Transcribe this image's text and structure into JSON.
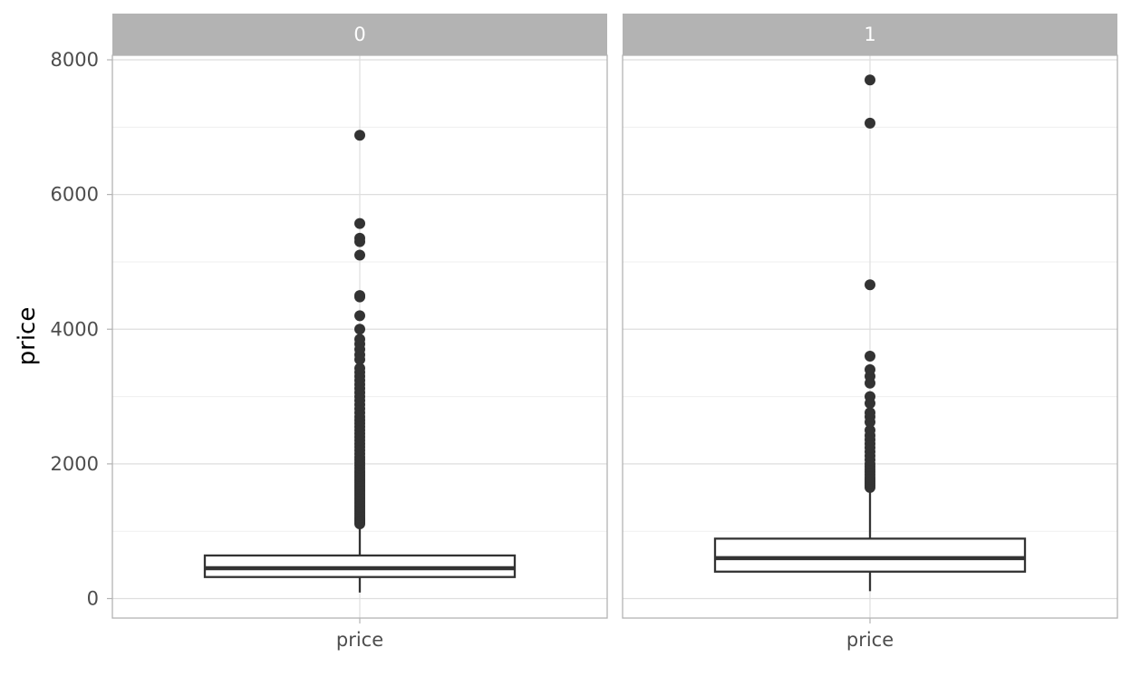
{
  "chart_data": {
    "type": "boxplot",
    "ylabel": "price",
    "ylim": [
      -300,
      8300
    ],
    "y_ticks": [
      0,
      2000,
      4000,
      6000,
      8000
    ],
    "y_tick_labels": [
      "0",
      "2000",
      "4000",
      "6000",
      "8000"
    ],
    "grid": true,
    "colors": {
      "strip_background": "#b3b3b3",
      "strip_text": "#ffffff",
      "panel_border": "#b3b3b3",
      "grid_major": "#dedede",
      "grid_minor": "#efefef",
      "box_stroke": "#333333",
      "outlier_fill": "#333333"
    },
    "panels": [
      {
        "strip_label": "0",
        "x_label": "price",
        "box": {
          "whisker_low": 90,
          "q1": 320,
          "median": 450,
          "q3": 640,
          "whisker_high": 1100
        },
        "outliers": [
          1110,
          1130,
          1150,
          1170,
          1190,
          1210,
          1240,
          1270,
          1300,
          1330,
          1360,
          1390,
          1420,
          1450,
          1480,
          1510,
          1540,
          1570,
          1600,
          1630,
          1660,
          1690,
          1720,
          1750,
          1780,
          1810,
          1840,
          1870,
          1900,
          1940,
          1980,
          2020,
          2060,
          2100,
          2150,
          2200,
          2250,
          2300,
          2350,
          2400,
          2450,
          2500,
          2550,
          2600,
          2650,
          2700,
          2760,
          2820,
          2880,
          2940,
          3000,
          3060,
          3120,
          3180,
          3240,
          3300,
          3360,
          3420,
          3550,
          3620,
          3700,
          3780,
          3850,
          4000,
          4200,
          4480,
          4500,
          5100,
          5300,
          5350,
          5570,
          6880
        ]
      },
      {
        "strip_label": "1",
        "x_label": "price",
        "box": {
          "whisker_low": 110,
          "q1": 400,
          "median": 600,
          "q3": 890,
          "whisker_high": 1630
        },
        "outliers": [
          1650,
          1680,
          1710,
          1740,
          1770,
          1800,
          1840,
          1880,
          1920,
          1960,
          2000,
          2060,
          2120,
          2180,
          2240,
          2300,
          2360,
          2420,
          2500,
          2620,
          2700,
          2760,
          2900,
          3000,
          3200,
          3300,
          3400,
          3600,
          4660,
          7060,
          7700
        ]
      }
    ]
  }
}
